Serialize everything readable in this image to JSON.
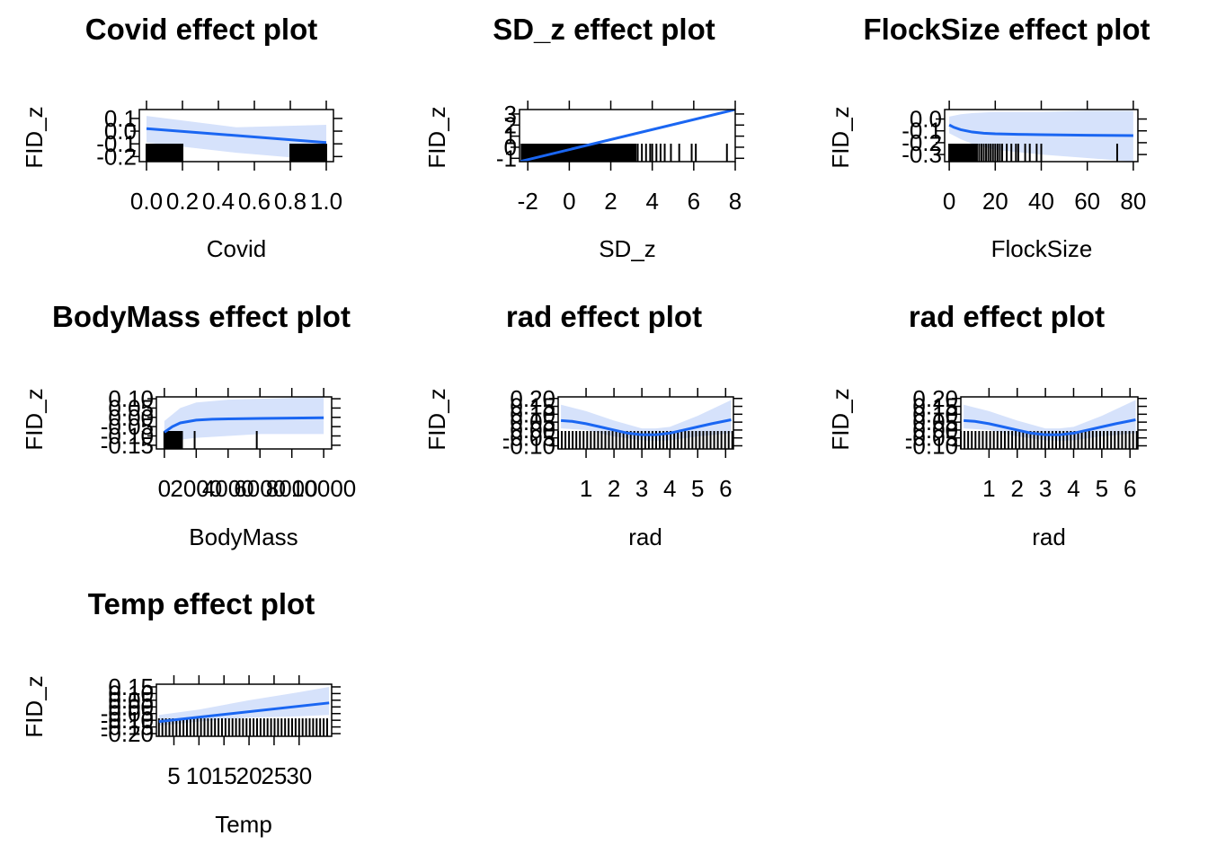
{
  "chart_data": [
    {
      "type": "line",
      "title": "Covid effect plot",
      "xlabel": "Covid",
      "ylabel": "FID_z",
      "xlim": [
        -0.04,
        1.04
      ],
      "ylim": [
        -0.24,
        0.17
      ],
      "xticks": [
        "0.0",
        "0.2",
        "0.4",
        "0.6",
        "0.8",
        "1.0"
      ],
      "xtick_values": [
        0,
        0.2,
        0.4,
        0.6,
        0.8,
        1.0
      ],
      "yticks": [
        "-0.2",
        "-0.1",
        "0.0",
        "0.1"
      ],
      "ytick_values": [
        -0.2,
        -0.1,
        0.0,
        0.1
      ],
      "line": {
        "x": [
          0,
          1
        ],
        "y": [
          0.02,
          -0.09
        ]
      },
      "band": {
        "x": [
          0,
          0.5,
          1
        ],
        "lower": [
          -0.09,
          -0.17,
          -0.23
        ],
        "upper": [
          0.12,
          0.03,
          0.05
        ]
      },
      "rug": {
        "x": [
          0.0,
          0.04,
          0.08,
          0.12,
          0.16,
          0.2,
          0.8,
          0.84,
          0.88,
          0.92,
          0.96,
          1.0
        ],
        "dense": [
          [
            0,
            0.2
          ],
          [
            0.8,
            1.0
          ]
        ]
      }
    },
    {
      "type": "line",
      "title": "SD_z effect plot",
      "xlabel": "SD_z",
      "ylabel": "FID_z",
      "xlim": [
        -2.4,
        8.0
      ],
      "ylim": [
        -1.3,
        3.4
      ],
      "xticks": [
        "-2",
        "0",
        "2",
        "4",
        "6",
        "8"
      ],
      "xtick_values": [
        -2,
        0,
        2,
        4,
        6,
        8
      ],
      "yticks": [
        "-1",
        "0",
        "1",
        "2",
        "3"
      ],
      "ytick_values": [
        -1,
        0,
        1,
        2,
        3
      ],
      "line": {
        "x": [
          -2.4,
          8.0
        ],
        "y": [
          -1.3,
          3.4
        ]
      },
      "band": {
        "x": [
          -2.4,
          8.0
        ],
        "lower": [
          -1.4,
          3.3
        ],
        "upper": [
          -1.2,
          3.5
        ]
      },
      "rug": {
        "x": [
          3.3,
          3.5,
          3.7,
          3.9,
          4.0,
          4.2,
          4.4,
          4.6,
          4.9,
          5.3,
          5.9,
          6.1,
          7.6
        ],
        "dense": [
          [
            -2.3,
            3.2
          ]
        ]
      }
    },
    {
      "type": "line",
      "title": "FlockSize effect plot",
      "xlabel": "FlockSize",
      "ylabel": "FID_z",
      "xlim": [
        -2,
        82
      ],
      "ylim": [
        -0.36,
        0.08
      ],
      "xticks": [
        "0",
        "20",
        "40",
        "60",
        "80"
      ],
      "xtick_values": [
        0,
        20,
        40,
        60,
        80
      ],
      "yticks": [
        "-0.3",
        "-0.2",
        "-0.1",
        "0.0"
      ],
      "ytick_values": [
        -0.3,
        -0.2,
        -0.1,
        0.0
      ],
      "line": {
        "x": [
          0,
          2,
          5,
          10,
          15,
          20,
          30,
          40,
          60,
          80
        ],
        "y": [
          -0.05,
          -0.07,
          -0.09,
          -0.11,
          -0.12,
          -0.125,
          -0.13,
          -0.132,
          -0.137,
          -0.14
        ]
      },
      "band": {
        "x": [
          0,
          5,
          10,
          20,
          40,
          60,
          80
        ],
        "lower": [
          -0.12,
          -0.17,
          -0.21,
          -0.26,
          -0.3,
          -0.33,
          -0.36
        ],
        "upper": [
          0.02,
          0.04,
          0.05,
          0.06,
          0.06,
          0.07,
          0.07
        ]
      },
      "rug": {
        "x": [
          0,
          1,
          2,
          3,
          4,
          5,
          6,
          7,
          8,
          9,
          10,
          11,
          12,
          13,
          14,
          15,
          16,
          17,
          18,
          19,
          20,
          21,
          22,
          23,
          25,
          27,
          29,
          30,
          33,
          35,
          38,
          40,
          73
        ],
        "dense": [
          [
            0,
            12
          ]
        ]
      }
    },
    {
      "type": "line",
      "title": "BodyMass effect plot",
      "xlabel": "BodyMass",
      "ylabel": "FID_z",
      "xlim": [
        -500,
        10500
      ],
      "ylim": [
        -0.17,
        0.11
      ],
      "xticks": [
        "0",
        "2000",
        "4000",
        "6000",
        "8000",
        "10000"
      ],
      "xtick_values": [
        0,
        2000,
        4000,
        6000,
        8000,
        10000
      ],
      "yticks": [
        "-0.15",
        "-0.10",
        "-0.05",
        "0.00",
        "0.05",
        "0.10"
      ],
      "ytick_values": [
        -0.15,
        -0.1,
        -0.05,
        0.0,
        0.05,
        0.1
      ],
      "line": {
        "x": [
          0,
          500,
          1000,
          2000,
          3000,
          4000,
          6000,
          8000,
          10000
        ],
        "y": [
          -0.08,
          -0.05,
          -0.03,
          -0.015,
          -0.01,
          -0.008,
          -0.006,
          -0.004,
          -0.002
        ]
      },
      "band": {
        "x": [
          0,
          1000,
          2000,
          4000,
          6000,
          8000,
          10000
        ],
        "lower": [
          -0.14,
          -0.12,
          -0.11,
          -0.1,
          -0.09,
          -0.09,
          -0.09
        ],
        "upper": [
          -0.02,
          0.05,
          0.08,
          0.095,
          0.1,
          0.105,
          0.11
        ]
      },
      "rug": {
        "x": [
          100,
          300,
          500,
          700,
          900,
          1100,
          1900,
          5800
        ],
        "dense": [
          [
            0,
            1100
          ]
        ]
      }
    },
    {
      "type": "line",
      "title": "rad effect plot",
      "xlabel": "rad",
      "ylabel": "FID_z",
      "xlim": [
        0.0,
        6.28
      ],
      "ylim": [
        -0.12,
        0.21
      ],
      "xticks": [
        "1",
        "2",
        "3",
        "4",
        "5",
        "6"
      ],
      "xtick_values": [
        1,
        2,
        3,
        4,
        5,
        6
      ],
      "yticks": [
        "-0.10",
        "-0.05",
        "0.00",
        "0.05",
        "0.10",
        "0.15",
        "0.20"
      ],
      "ytick_values": [
        -0.1,
        -0.05,
        0.0,
        0.05,
        0.1,
        0.15,
        0.2
      ],
      "line": {
        "x": [
          0.1,
          0.5,
          1.0,
          1.5,
          2.0,
          2.5,
          3.0,
          3.5,
          4.0,
          4.5,
          5.0,
          5.5,
          6.2
        ],
        "y": [
          0.06,
          0.055,
          0.04,
          0.02,
          0.0,
          -0.02,
          -0.03,
          -0.03,
          -0.02,
          0.0,
          0.02,
          0.04,
          0.065
        ]
      },
      "band": {
        "x": [
          0.1,
          1.0,
          2.0,
          3.0,
          3.5,
          4.0,
          5.0,
          6.2
        ],
        "lower": [
          0.01,
          0.0,
          -0.04,
          -0.065,
          -0.07,
          -0.065,
          -0.04,
          -0.02
        ],
        "upper": [
          0.16,
          0.12,
          0.06,
          0.01,
          0.01,
          0.02,
          0.09,
          0.19
        ]
      },
      "rug": {
        "step": 0.13,
        "range": [
          0.0,
          6.28
        ]
      }
    },
    {
      "type": "line",
      "title": "rad effect plot",
      "xlabel": "rad",
      "ylabel": "FID_z",
      "xlim": [
        0.0,
        6.28
      ],
      "ylim": [
        -0.12,
        0.21
      ],
      "xticks": [
        "1",
        "2",
        "3",
        "4",
        "5",
        "6"
      ],
      "xtick_values": [
        1,
        2,
        3,
        4,
        5,
        6
      ],
      "yticks": [
        "-0.10",
        "-0.05",
        "0.00",
        "0.05",
        "0.10",
        "0.15",
        "0.20"
      ],
      "ytick_values": [
        -0.1,
        -0.05,
        0.0,
        0.05,
        0.1,
        0.15,
        0.2
      ],
      "line": {
        "x": [
          0.1,
          0.5,
          1.0,
          1.5,
          2.0,
          2.5,
          3.0,
          3.5,
          4.0,
          4.5,
          5.0,
          5.5,
          6.2
        ],
        "y": [
          0.06,
          0.055,
          0.04,
          0.02,
          0.0,
          -0.02,
          -0.03,
          -0.03,
          -0.02,
          0.0,
          0.02,
          0.04,
          0.065
        ]
      },
      "band": {
        "x": [
          0.1,
          1.0,
          2.0,
          3.0,
          3.5,
          4.0,
          5.0,
          6.2
        ],
        "lower": [
          0.01,
          0.0,
          -0.04,
          -0.065,
          -0.07,
          -0.065,
          -0.04,
          -0.02
        ],
        "upper": [
          0.16,
          0.12,
          0.06,
          0.01,
          0.01,
          0.02,
          0.09,
          0.19
        ]
      },
      "rug": {
        "step": 0.13,
        "range": [
          0.0,
          6.28
        ]
      }
    },
    {
      "type": "line",
      "title": "Temp effect plot",
      "xlabel": "Temp",
      "ylabel": "FID_z",
      "xlim": [
        1.5,
        36.5
      ],
      "ylim": [
        -0.22,
        0.17
      ],
      "xticks": [
        "5",
        "10",
        "15",
        "20",
        "25",
        "30"
      ],
      "xtick_values": [
        5,
        10,
        15,
        20,
        25,
        30
      ],
      "yticks": [
        "-0.20",
        "-0.15",
        "-0.10",
        "-0.05",
        "0.00",
        "0.05",
        "0.10",
        "0.15"
      ],
      "ytick_values": [
        -0.2,
        -0.15,
        -0.1,
        -0.05,
        0.0,
        0.05,
        0.1,
        0.15
      ],
      "line": {
        "x": [
          2,
          36
        ],
        "y": [
          -0.11,
          0.03
        ]
      },
      "band": {
        "x": [
          2,
          10,
          20,
          30,
          36
        ],
        "lower": [
          -0.14,
          -0.11,
          -0.08,
          -0.07,
          -0.06
        ],
        "upper": [
          -0.06,
          -0.02,
          0.05,
          0.11,
          0.15
        ]
      },
      "rug": {
        "step": 0.7,
        "range": [
          2,
          36
        ]
      }
    }
  ]
}
